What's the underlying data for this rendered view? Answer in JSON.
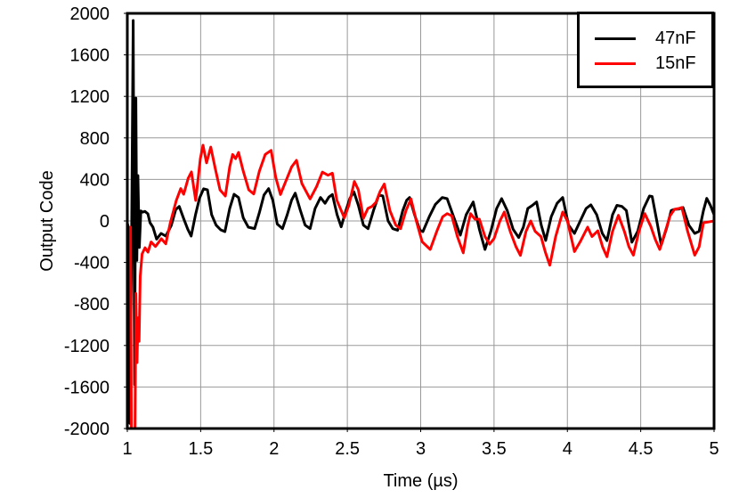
{
  "chart_data": {
    "type": "line",
    "title": "",
    "xlabel": "Time (µs)",
    "ylabel": "Output Code",
    "xlim": [
      1,
      5
    ],
    "ylim": [
      -2000,
      2000
    ],
    "grid": true,
    "grid_color": "#999999",
    "axis_color": "#000000",
    "background_color": "#ffffff",
    "legend": {
      "position": "top-right"
    },
    "x_ticks": [
      {
        "value": 1,
        "label": "1"
      },
      {
        "value": 1.5,
        "label": "1.5"
      },
      {
        "value": 2,
        "label": "2"
      },
      {
        "value": 2.5,
        "label": "2.5"
      },
      {
        "value": 3,
        "label": "3"
      },
      {
        "value": 3.5,
        "label": "3.5"
      },
      {
        "value": 4,
        "label": "4"
      },
      {
        "value": 4.5,
        "label": "4.5"
      },
      {
        "value": 5,
        "label": "5"
      }
    ],
    "y_ticks": [
      {
        "value": 2000,
        "label": "2000"
      },
      {
        "value": 1600,
        "label": "1600"
      },
      {
        "value": 1200,
        "label": "1200"
      },
      {
        "value": 800,
        "label": "800"
      },
      {
        "value": 400,
        "label": "400"
      },
      {
        "value": 0,
        "label": "0"
      },
      {
        "value": -400,
        "label": "-400"
      },
      {
        "value": -800,
        "label": "-800"
      },
      {
        "value": -1200,
        "label": "-1200"
      },
      {
        "value": -1600,
        "label": "-1600"
      },
      {
        "value": -2000,
        "label": "-2000"
      }
    ],
    "series": [
      {
        "name": "47nF",
        "color": "#000000",
        "points": [
          [
            1.0,
            -20
          ],
          [
            1.01,
            -80
          ],
          [
            1.018,
            -1950
          ],
          [
            1.028,
            -400
          ],
          [
            1.04,
            1931
          ],
          [
            1.05,
            -1577
          ],
          [
            1.058,
            1184
          ],
          [
            1.065,
            -380
          ],
          [
            1.072,
            437
          ],
          [
            1.082,
            -255
          ],
          [
            1.092,
            97
          ],
          [
            1.105,
            85
          ],
          [
            1.12,
            92
          ],
          [
            1.14,
            69
          ],
          [
            1.155,
            -17
          ],
          [
            1.175,
            -60
          ],
          [
            1.2,
            -175
          ],
          [
            1.23,
            -120
          ],
          [
            1.262,
            -146
          ],
          [
            1.3,
            -43
          ],
          [
            1.33,
            110
          ],
          [
            1.354,
            140
          ],
          [
            1.385,
            20
          ],
          [
            1.412,
            -80
          ],
          [
            1.435,
            -146
          ],
          [
            1.465,
            60
          ],
          [
            1.492,
            220
          ],
          [
            1.52,
            310
          ],
          [
            1.546,
            300
          ],
          [
            1.575,
            60
          ],
          [
            1.605,
            -40
          ],
          [
            1.637,
            -86
          ],
          [
            1.665,
            -103
          ],
          [
            1.698,
            120
          ],
          [
            1.728,
            257
          ],
          [
            1.758,
            226
          ],
          [
            1.79,
            30
          ],
          [
            1.825,
            -60
          ],
          [
            1.868,
            -74
          ],
          [
            1.9,
            80
          ],
          [
            1.932,
            250
          ],
          [
            1.963,
            312
          ],
          [
            1.992,
            200
          ],
          [
            2.022,
            -30
          ],
          [
            2.058,
            -74
          ],
          [
            2.09,
            60
          ],
          [
            2.12,
            200
          ],
          [
            2.145,
            268
          ],
          [
            2.18,
            100
          ],
          [
            2.212,
            -40
          ],
          [
            2.246,
            -74
          ],
          [
            2.28,
            120
          ],
          [
            2.317,
            226
          ],
          [
            2.348,
            170
          ],
          [
            2.374,
            230
          ],
          [
            2.398,
            255
          ],
          [
            2.43,
            60
          ],
          [
            2.458,
            -57
          ],
          [
            2.49,
            100
          ],
          [
            2.518,
            220
          ],
          [
            2.545,
            280
          ],
          [
            2.575,
            150
          ],
          [
            2.61,
            -40
          ],
          [
            2.641,
            -75
          ],
          [
            2.678,
            100
          ],
          [
            2.715,
            250
          ],
          [
            2.742,
            240
          ],
          [
            2.778,
            0
          ],
          [
            2.81,
            -75
          ],
          [
            2.843,
            -89
          ],
          [
            2.878,
            100
          ],
          [
            2.905,
            200
          ],
          [
            2.924,
            226
          ],
          [
            2.958,
            60
          ],
          [
            2.995,
            -90
          ],
          [
            3.015,
            -103
          ],
          [
            3.058,
            40
          ],
          [
            3.1,
            160
          ],
          [
            3.147,
            226
          ],
          [
            3.18,
            215
          ],
          [
            3.222,
            50
          ],
          [
            3.27,
            -137
          ],
          [
            3.31,
            60
          ],
          [
            3.358,
            183
          ],
          [
            3.4,
            -80
          ],
          [
            3.438,
            -275
          ],
          [
            3.478,
            -100
          ],
          [
            3.518,
            120
          ],
          [
            3.552,
            215
          ],
          [
            3.59,
            100
          ],
          [
            3.63,
            -80
          ],
          [
            3.668,
            -160
          ],
          [
            3.7,
            -60
          ],
          [
            3.73,
            120
          ],
          [
            3.762,
            150
          ],
          [
            3.79,
            183
          ],
          [
            3.822,
            -40
          ],
          [
            3.852,
            -188
          ],
          [
            3.89,
            40
          ],
          [
            3.93,
            170
          ],
          [
            3.968,
            226
          ],
          [
            4.008,
            -40
          ],
          [
            4.048,
            -120
          ],
          [
            4.088,
            0
          ],
          [
            4.128,
            120
          ],
          [
            4.16,
            155
          ],
          [
            4.2,
            60
          ],
          [
            4.238,
            -120
          ],
          [
            4.27,
            -190
          ],
          [
            4.308,
            60
          ],
          [
            4.338,
            150
          ],
          [
            4.372,
            140
          ],
          [
            4.402,
            100
          ],
          [
            4.44,
            -205
          ],
          [
            4.48,
            -100
          ],
          [
            4.52,
            120
          ],
          [
            4.56,
            240
          ],
          [
            4.578,
            235
          ],
          [
            4.61,
            0
          ],
          [
            4.64,
            -232
          ],
          [
            4.678,
            -60
          ],
          [
            4.708,
            100
          ],
          [
            4.73,
            112
          ],
          [
            4.762,
            115
          ],
          [
            4.788,
            130
          ],
          [
            4.828,
            -40
          ],
          [
            4.868,
            -120
          ],
          [
            4.898,
            -100
          ],
          [
            4.928,
            100
          ],
          [
            4.95,
            217
          ],
          [
            4.975,
            150
          ],
          [
            5.0,
            60
          ]
        ]
      },
      {
        "name": "15nF",
        "color": "#ff0000",
        "points": [
          [
            1.022,
            -60
          ],
          [
            1.028,
            -2060
          ],
          [
            1.052,
            -2060
          ],
          [
            1.058,
            -700
          ],
          [
            1.066,
            -1365
          ],
          [
            1.073,
            -933
          ],
          [
            1.08,
            -1160
          ],
          [
            1.088,
            -532
          ],
          [
            1.101,
            -318
          ],
          [
            1.121,
            -258
          ],
          [
            1.141,
            -300
          ],
          [
            1.162,
            -203
          ],
          [
            1.192,
            -246
          ],
          [
            1.232,
            -172
          ],
          [
            1.262,
            -220
          ],
          [
            1.293,
            -17
          ],
          [
            1.334,
            197
          ],
          [
            1.364,
            312
          ],
          [
            1.384,
            257
          ],
          [
            1.415,
            412
          ],
          [
            1.437,
            472
          ],
          [
            1.466,
            197
          ],
          [
            1.498,
            600
          ],
          [
            1.516,
            730
          ],
          [
            1.54,
            560
          ],
          [
            1.569,
            712
          ],
          [
            1.6,
            500
          ],
          [
            1.632,
            300
          ],
          [
            1.668,
            240
          ],
          [
            1.698,
            520
          ],
          [
            1.718,
            640
          ],
          [
            1.738,
            600
          ],
          [
            1.758,
            660
          ],
          [
            1.79,
            480
          ],
          [
            1.828,
            300
          ],
          [
            1.862,
            260
          ],
          [
            1.9,
            480
          ],
          [
            1.94,
            640
          ],
          [
            1.98,
            680
          ],
          [
            2.012,
            420
          ],
          [
            2.044,
            255
          ],
          [
            2.08,
            380
          ],
          [
            2.12,
            520
          ],
          [
            2.153,
            584
          ],
          [
            2.19,
            360
          ],
          [
            2.246,
            212
          ],
          [
            2.29,
            330
          ],
          [
            2.33,
            470
          ],
          [
            2.368,
            440
          ],
          [
            2.398,
            460
          ],
          [
            2.428,
            200
          ],
          [
            2.479,
            30
          ],
          [
            2.51,
            150
          ],
          [
            2.548,
            380
          ],
          [
            2.575,
            300
          ],
          [
            2.61,
            26
          ],
          [
            2.64,
            120
          ],
          [
            2.668,
            140
          ],
          [
            2.695,
            180
          ],
          [
            2.722,
            280
          ],
          [
            2.752,
            355
          ],
          [
            2.79,
            100
          ],
          [
            2.83,
            -40
          ],
          [
            2.863,
            -75
          ],
          [
            2.9,
            100
          ],
          [
            2.934,
            212
          ],
          [
            2.97,
            0
          ],
          [
            3.01,
            -200
          ],
          [
            3.065,
            -275
          ],
          [
            3.11,
            -100
          ],
          [
            3.15,
            40
          ],
          [
            3.18,
            70
          ],
          [
            3.212,
            50
          ],
          [
            3.25,
            -150
          ],
          [
            3.29,
            -307
          ],
          [
            3.32,
            -50
          ],
          [
            3.34,
            70
          ],
          [
            3.37,
            17
          ],
          [
            3.4,
            17
          ],
          [
            3.438,
            -150
          ],
          [
            3.47,
            -224
          ],
          [
            3.5,
            -170
          ],
          [
            3.54,
            0
          ],
          [
            3.57,
            86
          ],
          [
            3.61,
            -100
          ],
          [
            3.65,
            -250
          ],
          [
            3.68,
            -332
          ],
          [
            3.718,
            -100
          ],
          [
            3.75,
            0
          ],
          [
            3.78,
            -100
          ],
          [
            3.82,
            -150
          ],
          [
            3.85,
            -300
          ],
          [
            3.88,
            -427
          ],
          [
            3.92,
            -150
          ],
          [
            3.968,
            86
          ],
          [
            4.0,
            0
          ],
          [
            4.048,
            -295
          ],
          [
            4.088,
            -200
          ],
          [
            4.138,
            -60
          ],
          [
            4.168,
            -150
          ],
          [
            4.208,
            -95
          ],
          [
            4.24,
            -250
          ],
          [
            4.27,
            -345
          ],
          [
            4.308,
            -100
          ],
          [
            4.348,
            54
          ],
          [
            4.388,
            -100
          ],
          [
            4.42,
            -250
          ],
          [
            4.45,
            -330
          ],
          [
            4.488,
            -100
          ],
          [
            4.528,
            70
          ],
          [
            4.568,
            -50
          ],
          [
            4.6,
            -180
          ],
          [
            4.63,
            -275
          ],
          [
            4.668,
            -100
          ],
          [
            4.7,
            50
          ],
          [
            4.73,
            112
          ],
          [
            4.76,
            120
          ],
          [
            4.78,
            130
          ],
          [
            4.82,
            -100
          ],
          [
            4.868,
            -330
          ],
          [
            4.898,
            -250
          ],
          [
            4.928,
            -17
          ],
          [
            4.96,
            -10
          ],
          [
            5.0,
            0
          ]
        ]
      }
    ]
  }
}
